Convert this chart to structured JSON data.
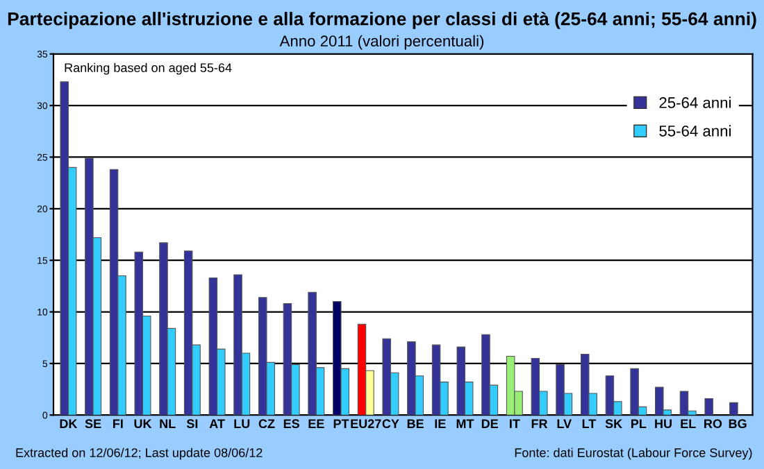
{
  "chart_data": {
    "type": "bar",
    "title": "Partecipazione all'istruzione e alla formazione per classi di età (25-64 anni; 55-64 anni)",
    "subtitle": "Anno 2011 (valori percentuali)",
    "categories": [
      "DK",
      "SE",
      "FI",
      "UK",
      "NL",
      "SI",
      "AT",
      "LU",
      "CZ",
      "ES",
      "EE",
      "PT",
      "EU27",
      "CY",
      "BE",
      "IE",
      "MT",
      "DE",
      "IT",
      "FR",
      "LV",
      "LT",
      "SK",
      "PL",
      "HU",
      "EL",
      "RO",
      "BG"
    ],
    "series": [
      {
        "name": "25-64 anni",
        "color": "#333399",
        "colors": [
          "#333399",
          "#333399",
          "#333399",
          "#333399",
          "#333399",
          "#333399",
          "#333399",
          "#333399",
          "#333399",
          "#333399",
          "#333399",
          "#000066",
          "#ff0000",
          "#333399",
          "#333399",
          "#333399",
          "#333399",
          "#333399",
          "#99ee77",
          "#333399",
          "#333399",
          "#333399",
          "#333399",
          "#333399",
          "#333399",
          "#333399",
          "#333399",
          "#333399"
        ],
        "values": [
          32.3,
          24.9,
          23.8,
          15.8,
          16.7,
          15.9,
          13.3,
          13.6,
          11.4,
          10.8,
          11.9,
          11.0,
          8.8,
          7.4,
          7.1,
          6.8,
          6.6,
          7.8,
          5.7,
          5.5,
          4.9,
          5.9,
          3.8,
          4.5,
          2.7,
          2.3,
          1.6,
          1.2
        ]
      },
      {
        "name": "55-64 anni",
        "color": "#33ccff",
        "colors": [
          "#33ccff",
          "#33ccff",
          "#33ccff",
          "#33ccff",
          "#33ccff",
          "#33ccff",
          "#33ccff",
          "#33ccff",
          "#33ccff",
          "#33ccff",
          "#33ccff",
          "#33ccff",
          "#ffff99",
          "#33ccff",
          "#33ccff",
          "#33ccff",
          "#33ccff",
          "#33ccff",
          "#99ee77",
          "#33ccff",
          "#33ccff",
          "#33ccff",
          "#33ccff",
          "#33ccff",
          "#33ccff",
          "#33ccff",
          "#33ccff",
          "#33ccff"
        ],
        "values": [
          24.0,
          17.2,
          13.5,
          9.6,
          8.4,
          6.8,
          6.4,
          6.0,
          5.1,
          4.9,
          4.6,
          4.5,
          4.3,
          4.1,
          3.8,
          3.2,
          3.2,
          2.9,
          2.3,
          2.3,
          2.1,
          2.1,
          1.3,
          0.8,
          0.5,
          0.4,
          null,
          null
        ]
      }
    ],
    "ylim": [
      0,
      35
    ],
    "yticks": [
      0,
      5,
      10,
      15,
      20,
      25,
      30,
      35
    ],
    "grid": "y",
    "legend": "top right",
    "annotations": [
      "Ranking based on aged 55-64",
      "Extracted on 12/06/12; Last update 08/06/12",
      "Fonte: dati Eurostat (Labour Force Survey)"
    ]
  }
}
